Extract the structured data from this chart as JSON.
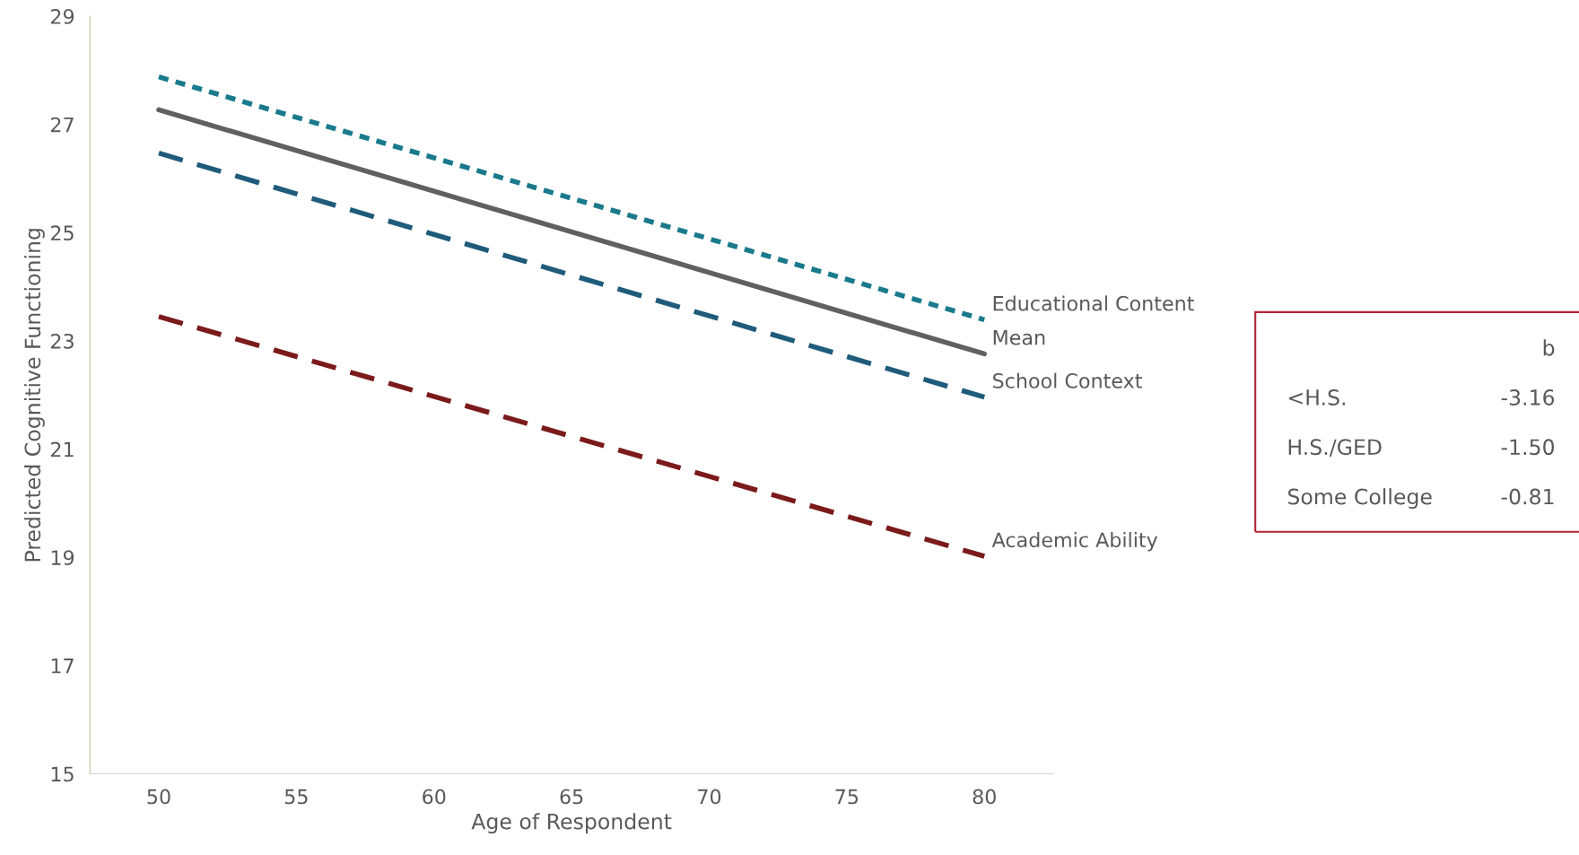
{
  "chart_data": {
    "type": "line",
    "xlabel": "Age of Respondent",
    "ylabel": "Predicted Cognitive Functioning",
    "x": [
      50,
      80
    ],
    "series": [
      {
        "name": "Educational Content",
        "color": "#1a7a8c",
        "values": [
          27.88,
          23.39
        ],
        "line_style": "dotted"
      },
      {
        "name": "Mean",
        "color": "#606060",
        "values": [
          27.27,
          22.76
        ],
        "line_style": "solid"
      },
      {
        "name": "School Context",
        "color": "#1f5b7a",
        "values": [
          26.47,
          21.96
        ],
        "line_style": "dashed"
      },
      {
        "name": "Academic Ability",
        "color": "#7b1a1a",
        "values": [
          23.45,
          19.02
        ],
        "line_style": "dashed"
      }
    ],
    "xlim": [
      47.5,
      82.5
    ],
    "xticks": [
      50,
      55,
      60,
      65,
      70,
      75,
      80
    ],
    "ylim": [
      15,
      29
    ],
    "yticks": [
      15,
      17,
      19,
      21,
      23,
      25,
      27,
      29
    ],
    "grid": false,
    "legend": false,
    "marker": "none",
    "annotations": [
      "b",
      "<H.S.",
      "-3.16",
      "H.S./GED",
      "-1.50",
      "Some College",
      "-0.81"
    ]
  }
}
